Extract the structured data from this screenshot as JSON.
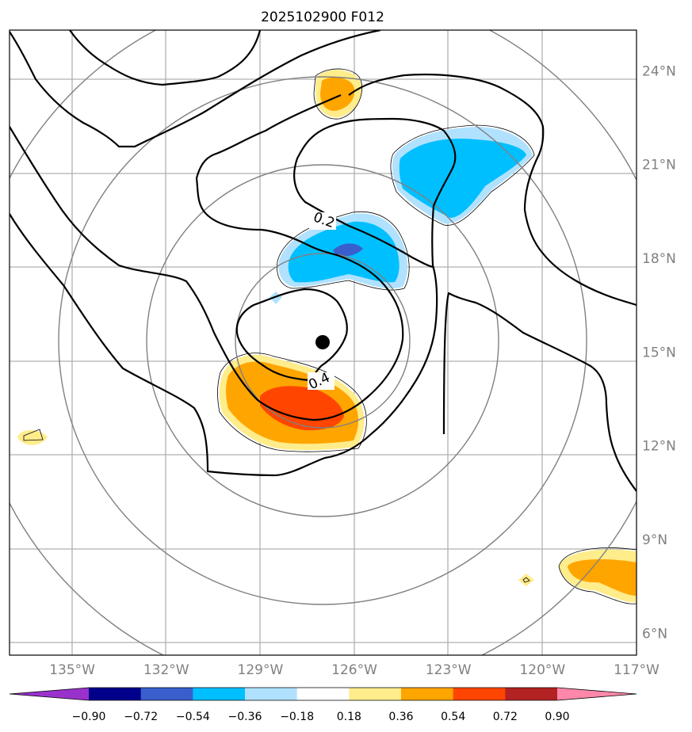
{
  "title": "2025102900 F012",
  "map": {
    "lon_range": [
      -137,
      -117
    ],
    "lat_range": [
      5.3,
      25.3
    ],
    "lon_ticks": [
      {
        "value": -135,
        "label": "135°W"
      },
      {
        "value": -132,
        "label": "132°W"
      },
      {
        "value": -129,
        "label": "129°W"
      },
      {
        "value": -126,
        "label": "126°W"
      },
      {
        "value": -123,
        "label": "123°W"
      },
      {
        "value": -120,
        "label": "120°W"
      },
      {
        "value": -117,
        "label": "117°W"
      }
    ],
    "lat_ticks": [
      {
        "value": 24,
        "label": "24°N"
      },
      {
        "value": 21,
        "label": "21°N"
      },
      {
        "value": 18,
        "label": "18°N"
      },
      {
        "value": 15,
        "label": "15°N"
      },
      {
        "value": 12,
        "label": "12°N"
      },
      {
        "value": 9,
        "label": "9°N"
      },
      {
        "value": 6,
        "label": "6°N"
      }
    ],
    "storm_center": {
      "lon": -127.0,
      "lat": 15.6
    },
    "contour_labels": [
      {
        "text": "0.2",
        "lon": -126.8,
        "lat": 19.5
      },
      {
        "text": "0.4",
        "lon": -126.2,
        "lat": 14.4
      }
    ]
  },
  "colorbar": {
    "levels": [
      "−0.90",
      "−0.72",
      "−0.54",
      "−0.36",
      "−0.18",
      "0.18",
      "0.36",
      "0.54",
      "0.72",
      "0.90"
    ],
    "colors": [
      "#9932cc",
      "#00008b",
      "#3a5fcd",
      "#00bfff",
      "#b0e2ff",
      "#ffffff",
      "#ffec8b",
      "#ffa500",
      "#ff4500",
      "#b22222",
      "#ff88aa"
    ]
  }
}
